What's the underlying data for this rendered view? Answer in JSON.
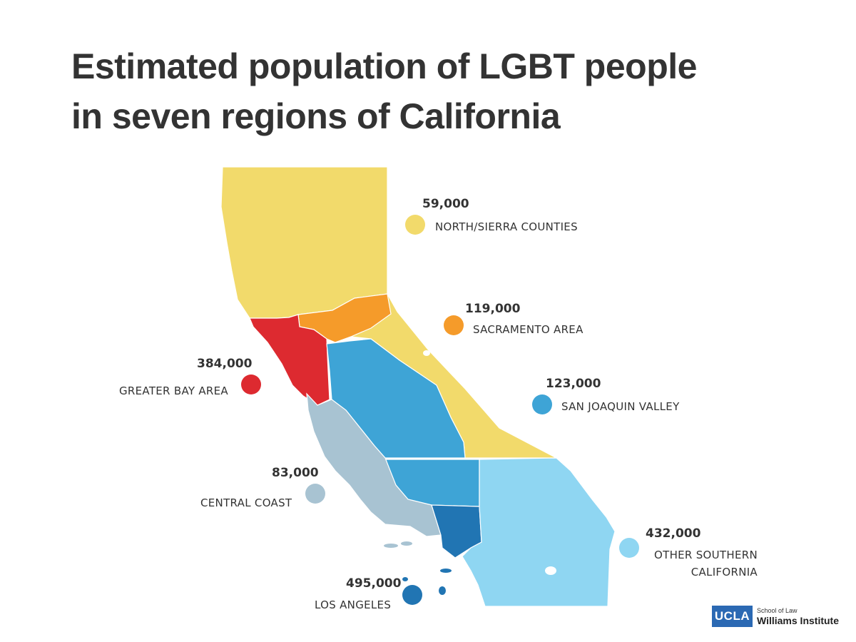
{
  "title_line1": "Estimated population of LGBT people",
  "title_line2": "in seven regions of California",
  "regions": {
    "north_sierra": {
      "value": "59,000",
      "name": "NORTH/SIERRA COUNTIES",
      "color": "#f2da6b"
    },
    "sacramento": {
      "value": "119,000",
      "name": "SACRAMENTO AREA",
      "color": "#f59b2a"
    },
    "bay_area": {
      "value": "384,000",
      "name": "GREATER BAY AREA",
      "color": "#dd2a30"
    },
    "san_joaquin": {
      "value": "123,000",
      "name": "SAN JOAQUIN VALLEY",
      "color": "#3ea4d6"
    },
    "central_coast": {
      "value": "83,000",
      "name": "CENTRAL COAST",
      "color": "#a8c3d2"
    },
    "other_southern": {
      "value": "432,000",
      "name_line1": "OTHER SOUTHERN",
      "name_line2": "CALIFORNIA",
      "color": "#8fd6f2"
    },
    "los_angeles": {
      "value": "495,000",
      "name": "LOS ANGELES",
      "color": "#2175b3"
    }
  },
  "logo": {
    "mark": "UCLA",
    "school": "School of Law",
    "institute": "Williams Institute"
  }
}
